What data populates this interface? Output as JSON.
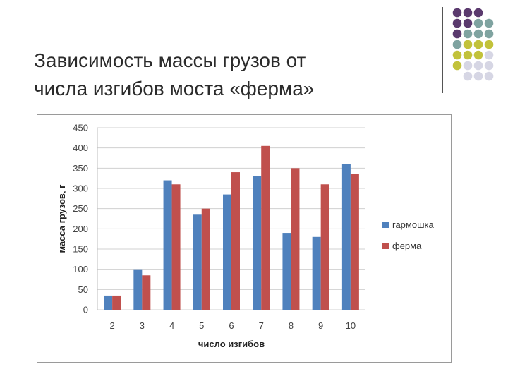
{
  "slide": {
    "title_line1": "Зависимость массы грузов от",
    "title_line2": "числа изгибов моста «ферма»"
  },
  "decor": {
    "dot_colors": {
      "purple": "#5b3a6e",
      "teal": "#7fa3a0",
      "olive": "#c2c23a",
      "lavender": "#d6d6e4"
    }
  },
  "chart_data": {
    "type": "bar",
    "categories": [
      "2",
      "3",
      "4",
      "5",
      "6",
      "7",
      "8",
      "9",
      "10"
    ],
    "series": [
      {
        "name": "гармошка",
        "color": "#4f81bd",
        "values": [
          35,
          100,
          320,
          235,
          285,
          330,
          190,
          180,
          360
        ]
      },
      {
        "name": "ферма",
        "color": "#c0504d",
        "values": [
          35,
          85,
          310,
          250,
          340,
          405,
          350,
          310,
          335
        ]
      }
    ],
    "title": "",
    "xlabel": "число изгибов",
    "ylabel": "масса грузов, г",
    "ylim": [
      0,
      450
    ],
    "yticks": [
      "0",
      "50",
      "100",
      "150",
      "200",
      "250",
      "300",
      "350",
      "400",
      "450"
    ],
    "grid": true,
    "legend": "right"
  }
}
